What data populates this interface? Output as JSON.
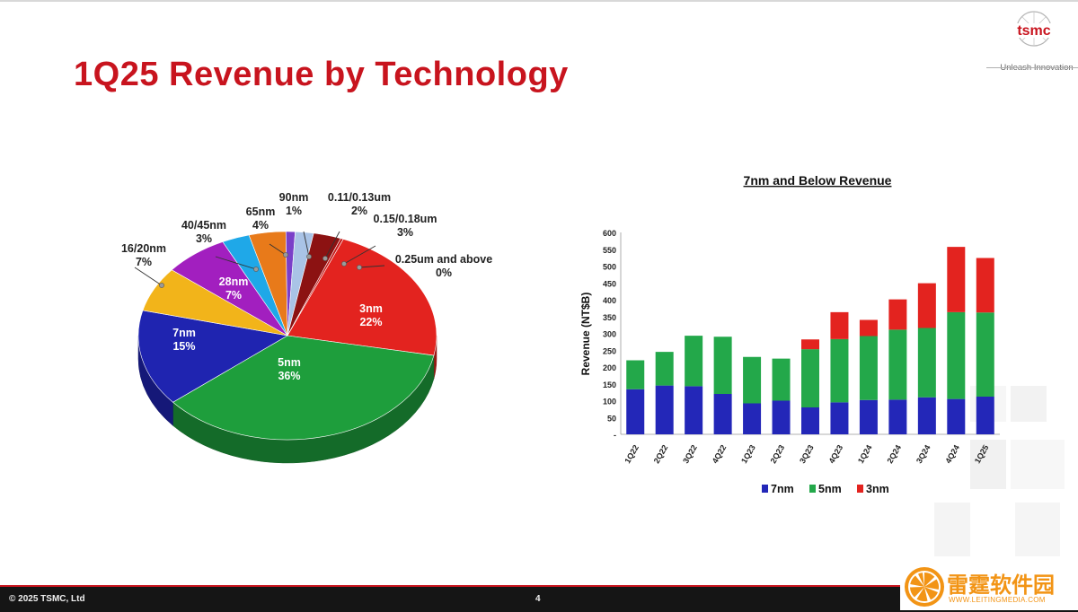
{
  "slide": {
    "title": "1Q25 Revenue by Technology",
    "footer_copyright": "© 2025 TSMC, Ltd",
    "page_number": "4"
  },
  "logo": {
    "wordmark": "tsmc",
    "tagline": "Unleash Innovation",
    "color": "#c8141e"
  },
  "watermark": {
    "text": "雷霆软件园",
    "url": "WWW.LEITINGMEDIA.COM",
    "color": "#f29415"
  },
  "chart_data": [
    {
      "type": "pie",
      "slices": [
        {
          "label": "3nm",
          "value_label": "22%",
          "value": 22,
          "color": "#e3231f"
        },
        {
          "label": "5nm",
          "value_label": "36%",
          "value": 36,
          "color": "#1e9e3c"
        },
        {
          "label": "7nm",
          "value_label": "15%",
          "value": 15,
          "color": "#1f24b0"
        },
        {
          "label": "16/20nm",
          "value_label": "7%",
          "value": 7,
          "color": "#f2b41a"
        },
        {
          "label": "28nm",
          "value_label": "7%",
          "value": 7,
          "color": "#a21fbf"
        },
        {
          "label": "40/45nm",
          "value_label": "3%",
          "value": 3,
          "color": "#1fa8e8"
        },
        {
          "label": "65nm",
          "value_label": "4%",
          "value": 4,
          "color": "#e87a1a"
        },
        {
          "label": "90nm",
          "value_label": "1%",
          "value": 1,
          "color": "#7a3fc8"
        },
        {
          "label": "0.11/0.13um",
          "value_label": "2%",
          "value": 2,
          "color": "#a9c3e6"
        },
        {
          "label": "0.15/0.18um",
          "value_label": "3%",
          "value": 3,
          "color": "#8c1212"
        },
        {
          "label": "0.25um and above",
          "value_label": "0%",
          "value": 0.3,
          "color": "#c41818"
        }
      ]
    },
    {
      "type": "bar",
      "stacked": true,
      "title": "7nm and Below Revenue",
      "ylabel": "Revenue (NT$B)",
      "xlabel": "",
      "ylim": [
        0,
        600
      ],
      "yticks": [
        "-",
        "50",
        "100",
        "150",
        "200",
        "250",
        "300",
        "350",
        "400",
        "450",
        "500",
        "550",
        "600"
      ],
      "categories": [
        "1Q22",
        "2Q22",
        "3Q22",
        "4Q22",
        "1Q23",
        "2Q23",
        "3Q23",
        "4Q23",
        "1Q24",
        "2Q24",
        "3Q24",
        "4Q24",
        "1Q25"
      ],
      "series": [
        {
          "name": "7nm",
          "color": "#2327b8",
          "values": [
            134,
            145,
            143,
            120,
            92,
            100,
            80,
            95,
            102,
            103,
            110,
            105,
            112
          ]
        },
        {
          "name": "5nm",
          "color": "#23a84a",
          "values": [
            86,
            100,
            150,
            170,
            138,
            125,
            173,
            188,
            190,
            208,
            206,
            258,
            250
          ]
        },
        {
          "name": "3nm",
          "color": "#e3231f",
          "values": [
            0,
            0,
            0,
            0,
            0,
            0,
            29,
            80,
            48,
            90,
            133,
            194,
            162
          ]
        }
      ],
      "legend": "bottom"
    }
  ]
}
